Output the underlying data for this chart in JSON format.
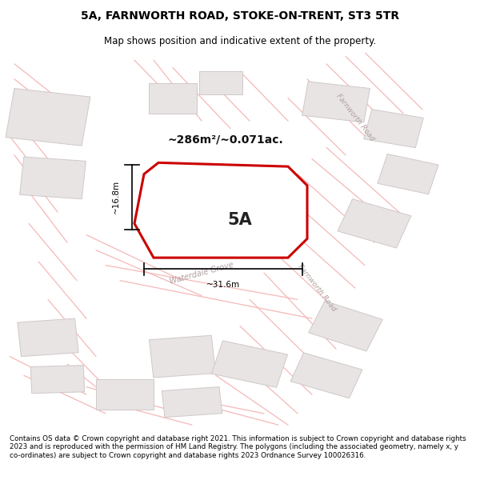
{
  "title": "5A, FARNWORTH ROAD, STOKE-ON-TRENT, ST3 5TR",
  "subtitle": "Map shows position and indicative extent of the property.",
  "footer": "Contains OS data © Crown copyright and database right 2021. This information is subject to Crown copyright and database rights 2023 and is reproduced with the permission of HM Land Registry. The polygons (including the associated geometry, namely x, y co-ordinates) are subject to Crown copyright and database rights 2023 Ordnance Survey 100026316.",
  "area_label": "~286m²/~0.071ac.",
  "plot_label": "5A",
  "dim1_label": "~16.8m",
  "dim2_label": "~31.6m",
  "road1_label": "Farnworth Road",
  "road2_label": "Farnworth Road",
  "road3_label": "Waterdale Grove",
  "map_bg": "#ffffff",
  "highlight_color": "#cc0000",
  "road_line_color": "#f5b8b8",
  "building_fill": "#e8e4e4",
  "building_edge": "#d0c8c8",
  "title_color": "#000000",
  "footer_color": "#000000",
  "dim_line_color": "#000000",
  "road_label_color": "#b0a0a0",
  "plot_label_color": "#222222",
  "area_label_color": "#111111"
}
